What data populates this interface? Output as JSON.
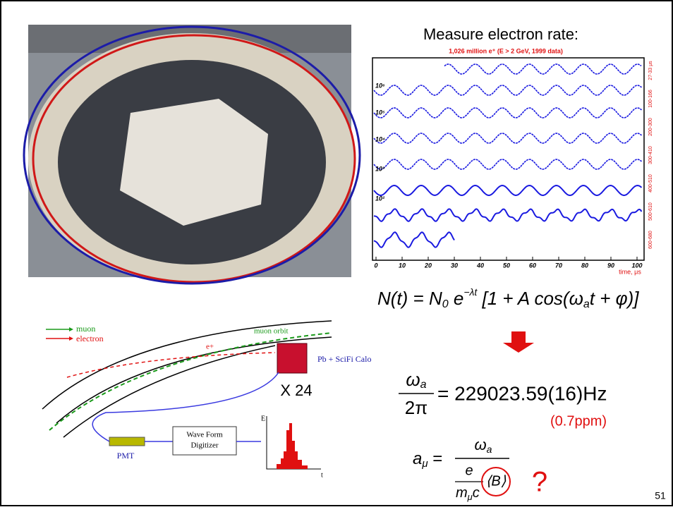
{
  "heading": "Measure electron rate:",
  "plot": {
    "title": "1,026 million e⁺ (E > 2 GeV, 1999 data)",
    "xticks": [
      "0",
      "10",
      "20",
      "30",
      "40",
      "50",
      "60",
      "70",
      "80",
      "90",
      "100"
    ],
    "xlabel": "time, μs",
    "yticks": [
      "10⁶",
      "10⁵",
      "10⁴",
      "10³",
      "10²"
    ],
    "row_labels": [
      "27-33 μs",
      "100-166",
      "200-300",
      "300-410",
      "400-510",
      "500-610",
      "600-680"
    ]
  },
  "equation1": [
    "N(t) = N",
    "0",
    " e",
    "−λt",
    " [1 + A cos(ω",
    "a",
    "t + φ)]"
  ],
  "equation2": {
    "numerator": [
      "ω",
      "a"
    ],
    "denominator": "2π",
    "result": "= 229023.59(16)Hz",
    "precision": "(0.7ppm)"
  },
  "equation3": {
    "lhs": [
      "a",
      "μ",
      " ="
    ],
    "numerator": [
      "ω",
      "a"
    ],
    "inner_numerator": "e",
    "inner_denominator": [
      "m",
      "μ",
      "c"
    ],
    "field": "⟨B⟩"
  },
  "question": "?",
  "diagram": {
    "legend": [
      "muon",
      "electron"
    ],
    "orbit": "muon orbit",
    "positron": "e+",
    "calorimeter": "Pb + SciFi Calo",
    "count": "X 24",
    "pmt": "PMT",
    "digitizer": [
      "Wave Form",
      "Digitizer"
    ],
    "hist_y": "E",
    "hist_x": "t"
  },
  "page_number": "51"
}
